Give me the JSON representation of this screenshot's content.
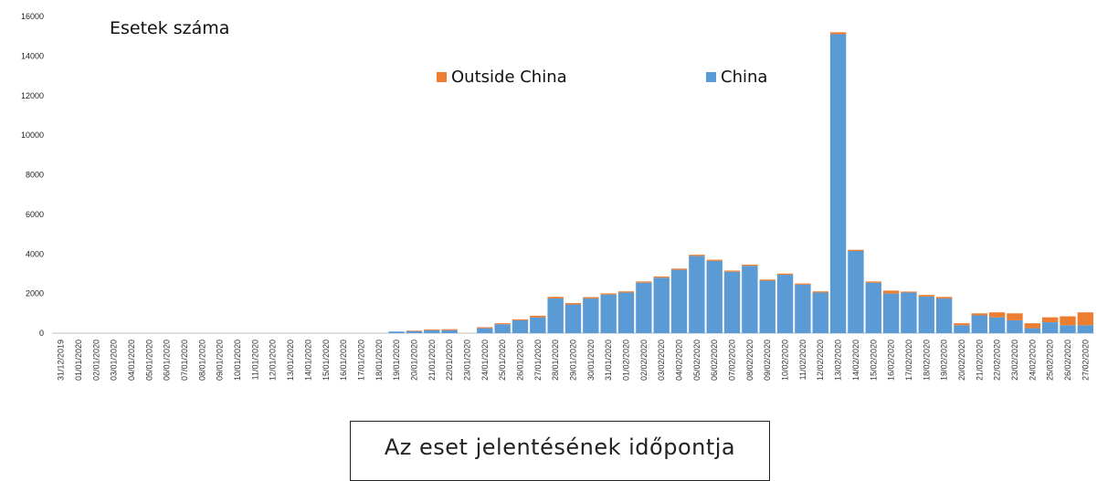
{
  "chart_data": {
    "type": "bar",
    "stacked": true,
    "ylabel": "Esetek száma",
    "xlabel": "Az eset jelentésének időpontja",
    "ylim": [
      0,
      16000
    ],
    "yticks": [
      0,
      2000,
      4000,
      6000,
      8000,
      10000,
      12000,
      14000,
      16000
    ],
    "legend_position": "top-center",
    "categories": [
      "31/12/2019",
      "01/01/2020",
      "02/01/2020",
      "03/01/2020",
      "04/01/2020",
      "05/01/2020",
      "06/01/2020",
      "07/01/2020",
      "08/01/2020",
      "09/01/2020",
      "10/01/2020",
      "11/01/2020",
      "12/01/2020",
      "13/01/2020",
      "14/01/2020",
      "15/01/2020",
      "16/01/2020",
      "17/01/2020",
      "18/01/2020",
      "19/01/2020",
      "20/01/2020",
      "21/01/2020",
      "22/01/2020",
      "23/01/2020",
      "24/01/2020",
      "25/01/2020",
      "26/01/2020",
      "27/01/2020",
      "28/01/2020",
      "29/01/2020",
      "30/01/2020",
      "31/01/2020",
      "01/02/2020",
      "02/02/2020",
      "03/02/2020",
      "04/02/2020",
      "05/02/2020",
      "06/02/2020",
      "07/02/2020",
      "08/02/2020",
      "09/02/2020",
      "10/02/2020",
      "11/02/2020",
      "12/02/2020",
      "13/02/2020",
      "14/02/2020",
      "15/02/2020",
      "16/02/2020",
      "17/02/2020",
      "18/02/2020",
      "19/02/2020",
      "20/02/2020",
      "21/02/2020",
      "22/02/2020",
      "23/02/2020",
      "24/02/2020",
      "25/02/2020",
      "26/02/2020",
      "27/02/2020"
    ],
    "series": [
      {
        "name": "China",
        "color": "#5b9bd5",
        "values": [
          0,
          0,
          0,
          0,
          0,
          0,
          0,
          0,
          0,
          0,
          0,
          0,
          0,
          0,
          0,
          0,
          0,
          0,
          0,
          80,
          100,
          150,
          150,
          0,
          250,
          450,
          650,
          800,
          1750,
          1450,
          1750,
          1950,
          2050,
          2550,
          2800,
          3200,
          3900,
          3650,
          3100,
          3400,
          2650,
          2950,
          2450,
          2050,
          15100,
          4150,
          2550,
          2000,
          2050,
          1850,
          1750,
          400,
          900,
          800,
          650,
          250,
          550,
          400,
          400
        ]
      },
      {
        "name": "Outside China",
        "color": "#ed7d31",
        "values": [
          0,
          0,
          0,
          0,
          0,
          0,
          0,
          0,
          0,
          0,
          0,
          0,
          0,
          0,
          0,
          0,
          0,
          0,
          0,
          0,
          30,
          40,
          50,
          0,
          50,
          50,
          50,
          80,
          80,
          70,
          70,
          60,
          60,
          60,
          60,
          60,
          60,
          60,
          60,
          60,
          60,
          60,
          60,
          60,
          100,
          60,
          60,
          150,
          50,
          80,
          80,
          100,
          100,
          250,
          350,
          250,
          250,
          450,
          650
        ]
      }
    ]
  }
}
